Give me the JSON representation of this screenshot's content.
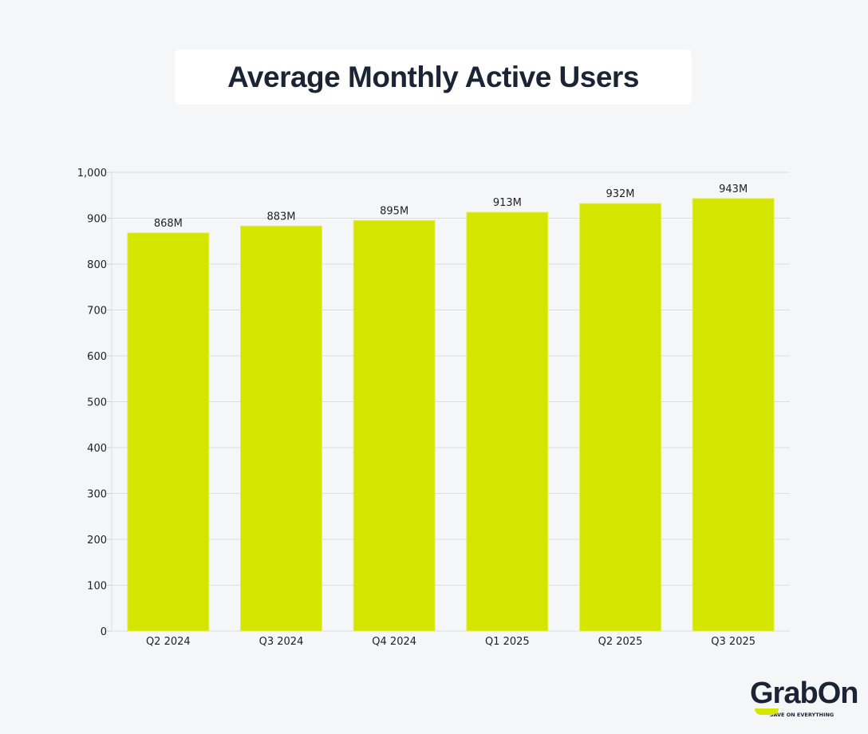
{
  "chart_data": {
    "type": "bar",
    "title": "Average Monthly Active Users",
    "categories": [
      "Q2 2024",
      "Q3 2024",
      "Q4 2024",
      "Q1 2025",
      "Q2 2025",
      "Q3 2025"
    ],
    "values": [
      868,
      883,
      895,
      913,
      932,
      943
    ],
    "data_labels": [
      "868M",
      "883M",
      "895M",
      "913M",
      "932M",
      "943M"
    ],
    "ylim": [
      0,
      1000
    ],
    "yticks": [
      0,
      100,
      200,
      300,
      400,
      500,
      600,
      700,
      800,
      900,
      1000
    ],
    "ytick_labels": [
      "0",
      "100",
      "200",
      "300",
      "400",
      "500",
      "600",
      "700",
      "800",
      "900",
      "1,000"
    ],
    "grid": true,
    "bar_color": "#d4e600",
    "xlabel": "",
    "ylabel": ""
  },
  "logo": {
    "text": "GrabOn",
    "tagline": "SAVE ON EVERYTHING",
    "accent": "#d4e600"
  }
}
